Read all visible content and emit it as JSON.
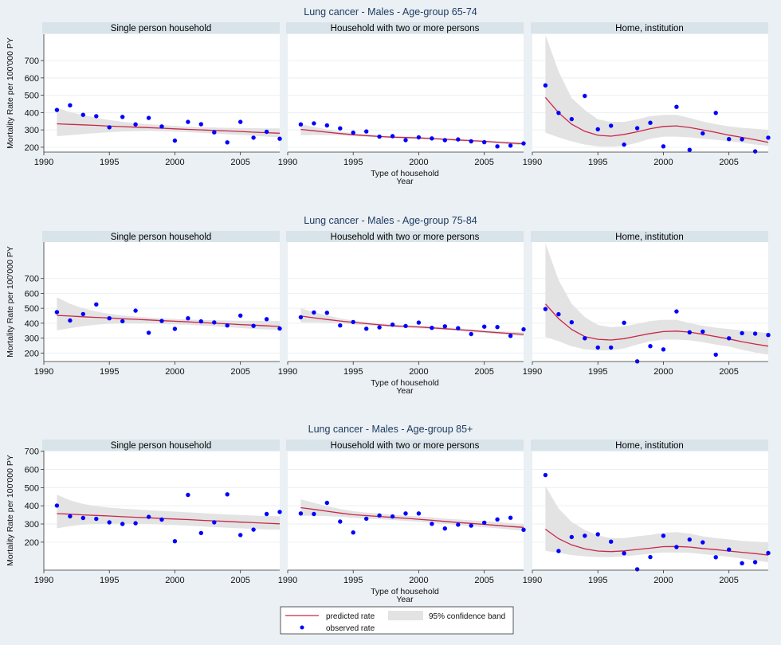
{
  "chart_data": {
    "type": "line",
    "layout": "3 rows x 3 facets",
    "shared": {
      "xlabel_lines": [
        "Type of household",
        "Year"
      ],
      "ylabel": "Mortality Rate per 100'000 PY",
      "x_ticks": [
        1990,
        1995,
        2000,
        2005
      ],
      "x_range": [
        1990,
        2008
      ],
      "y_ticks": [
        200,
        300,
        400,
        500,
        600,
        700
      ],
      "grid": true,
      "years": [
        1991,
        1992,
        1993,
        1994,
        1995,
        1996,
        1997,
        1998,
        1999,
        2000,
        2001,
        2002,
        2003,
        2004,
        2005,
        2006,
        2007,
        2008
      ]
    },
    "legend": {
      "placement": "bottom-center",
      "entries": [
        {
          "key": "predicted",
          "label": "predicted rate",
          "symbol": "line",
          "color": "#c8274a"
        },
        {
          "key": "band",
          "label": "95% confidence band",
          "symbol": "area",
          "color": "#e3e3e3"
        },
        {
          "key": "observed",
          "label": "observed rate",
          "symbol": "dot",
          "color": "#0000ff"
        }
      ]
    },
    "rows": [
      {
        "title": "Lung cancer - Males - Age-group 65-74",
        "y_range": [
          172,
          852
        ],
        "panels": [
          {
            "label": "Single person household",
            "observed": [
              415,
              442,
              387,
              379,
              315,
              375,
              332,
              369,
              320,
              238,
              346,
              333,
              286,
              228,
              346,
              255,
              289,
              249
            ],
            "predicted": [
              335,
              332,
              329,
              326,
              322,
              319,
              316,
              313,
              310,
              306,
              303,
              300,
              297,
              294,
              291,
              287,
              284,
              281
            ],
            "band_upper": [
              427,
              403,
              385,
              370,
              357,
              347,
              339,
              333,
              328,
              323,
              319,
              316,
              314,
              312,
              311,
              310,
              309,
              309
            ],
            "band_lower": [
              264,
              270,
              276,
              282,
              287,
              291,
              293,
              294,
              292,
              290,
              287,
              283,
              279,
              275,
              271,
              266,
              261,
              257
            ]
          },
          {
            "label": "Household with two or more persons",
            "observed": [
              332,
              338,
              326,
              309,
              284,
              291,
              261,
              264,
              241,
              257,
              251,
              241,
              245,
              234,
              229,
              205,
              209,
              222
            ],
            "predicted": [
              303,
              295,
              287,
              279,
              272,
              267,
              262,
              258,
              256,
              254,
              250,
              246,
              242,
              238,
              234,
              229,
              224,
              220
            ],
            "band_upper": [
              333,
              317,
              303,
              290,
              281,
              274,
              268,
              264,
              262,
              260,
              256,
              252,
              248,
              244,
              240,
              236,
              232,
              229
            ],
            "band_lower": [
              269,
              271,
              270,
              268,
              264,
              260,
              256,
              253,
              250,
              248,
              244,
              240,
              236,
              232,
              228,
              223,
              216,
              211
            ]
          },
          {
            "label": "Home, institution",
            "observed": [
              557,
              398,
              362,
              496,
              304,
              324,
              215,
              310,
              341,
              205,
              433,
              185,
              280,
              398,
              247,
              246,
              176,
              255
            ],
            "predicted": [
              487,
              399,
              333,
              292,
              269,
              264,
              274,
              289,
              307,
              320,
              323,
              314,
              300,
              286,
              270,
              257,
              243,
              228
            ],
            "band_upper": [
              849,
              637,
              484,
              415,
              361,
              346,
              346,
              361,
              379,
              387,
              387,
              369,
              349,
              333,
              320,
              312,
              306,
              300
            ],
            "band_lower": [
              284,
              257,
              234,
              215,
              205,
              203,
              208,
              226,
              249,
              261,
              261,
              257,
              249,
              243,
              235,
              226,
              215,
              208
            ]
          }
        ]
      },
      {
        "title": "Lung cancer - Males - Age-group 75-84",
        "y_range": [
          143,
          944
        ],
        "panels": [
          {
            "label": "Single person household",
            "observed": [
              474,
              418,
              461,
              526,
              433,
              413,
              484,
              336,
              415,
              362,
              433,
              412,
              405,
              385,
              451,
              382,
              427,
              364
            ],
            "predicted": [
              452,
              448,
              443,
              439,
              435,
              430,
              426,
              422,
              417,
              413,
              409,
              404,
              400,
              396,
              391,
              387,
              382,
              378
            ],
            "band_upper": [
              574,
              530,
              500,
              478,
              463,
              452,
              444,
              438,
              433,
              428,
              425,
              422,
              420,
              418,
              417,
              416,
              415,
              415
            ],
            "band_lower": [
              352,
              367,
              380,
              390,
              396,
              398,
              398,
              397,
              395,
              392,
              389,
              384,
              379,
              374,
              368,
              362,
              358,
              355
            ]
          },
          {
            "label": "Household with two or more persons",
            "observed": [
              440,
              472,
              470,
              385,
              408,
              363,
              372,
              390,
              381,
              404,
              369,
              379,
              366,
              327,
              377,
              374,
              315,
              359
            ],
            "predicted": [
              448,
              436,
              425,
              415,
              405,
              397,
              389,
              382,
              378,
              375,
              369,
              363,
              357,
              350,
              343,
              337,
              331,
              325
            ],
            "band_upper": [
              500,
              474,
              452,
              432,
              418,
              408,
              399,
              392,
              387,
              384,
              378,
              372,
              366,
              360,
              354,
              348,
              343,
              338
            ],
            "band_lower": [
              405,
              405,
              402,
              398,
              392,
              386,
              380,
              374,
              370,
              366,
              360,
              354,
              348,
              341,
              334,
              327,
              320,
              313
            ]
          },
          {
            "label": "Home, institution",
            "observed": [
              495,
              460,
              406,
              299,
              237,
              237,
              403,
              144,
              246,
              224,
              479,
              339,
              344,
              189,
              299,
              333,
              330,
              321
            ],
            "predicted": [
              529,
              431,
              358,
              310,
              292,
              287,
              296,
              314,
              331,
              344,
              347,
              340,
              326,
              310,
              294,
              276,
              260,
              246
            ],
            "band_upper": [
              936,
              690,
              530,
              441,
              388,
              373,
              379,
              396,
              414,
              423,
              423,
              401,
              383,
              370,
              361,
              352,
              343,
              334
            ],
            "band_lower": [
              308,
              279,
              245,
              225,
              217,
              217,
              231,
              257,
              279,
              290,
              290,
              285,
              273,
              257,
              244,
              222,
              204,
              189
            ]
          }
        ]
      },
      {
        "title": "Lung cancer - Males - Age-group 85+",
        "y_range": [
          46,
          703
        ],
        "panels": [
          {
            "label": "Single person household",
            "observed": [
              401,
              342,
              333,
              328,
              309,
              300,
              304,
              339,
              324,
              205,
              460,
              250,
              309,
              463,
              239,
              269,
              355,
              366
            ],
            "predicted": [
              357,
              354,
              350,
              347,
              344,
              340,
              337,
              334,
              330,
              327,
              324,
              320,
              317,
              314,
              310,
              307,
              304,
              301
            ],
            "band_upper": [
              461,
              430,
              410,
              398,
              390,
              384,
              380,
              376,
              372,
              368,
              364,
              360,
              356,
              352,
              349,
              346,
              344,
              342
            ],
            "band_lower": [
              276,
              288,
              296,
              300,
              302,
              302,
              301,
              300,
              297,
              294,
              291,
              287,
              283,
              279,
              276,
              273,
              270,
              268
            ]
          },
          {
            "label": "Household with two or more persons",
            "observed": [
              358,
              355,
              416,
              313,
              253,
              329,
              347,
              341,
              358,
              358,
              301,
              275,
              296,
              291,
              307,
              325,
              334,
              268
            ],
            "predicted": [
              390,
              380,
              370,
              360,
              351,
              346,
              341,
              336,
              331,
              326,
              320,
              314,
              308,
              303,
              298,
              292,
              286,
              281
            ],
            "band_upper": [
              436,
              416,
              398,
              382,
              370,
              363,
              357,
              351,
              346,
              341,
              336,
              330,
              325,
              320,
              316,
              311,
              305,
              300
            ],
            "band_lower": [
              345,
              345,
              343,
              340,
              334,
              330,
              326,
              322,
              317,
              312,
              306,
              300,
              294,
              288,
              282,
              276,
              269,
              263
            ]
          },
          {
            "label": "Home, institution",
            "observed": [
              569,
              151,
              228,
              235,
              243,
              203,
              139,
              51,
              118,
              235,
              173,
              214,
              199,
              117,
              159,
              84,
              90,
              140
            ],
            "predicted": [
              271,
              219,
              185,
              163,
              151,
              148,
              152,
              160,
              167,
              175,
              176,
              173,
              165,
              159,
              151,
              144,
              137,
              129
            ],
            "band_upper": [
              509,
              385,
              311,
              267,
              237,
              222,
              222,
              232,
              240,
              252,
              255,
              247,
              232,
              222,
              215,
              207,
              203,
              198
            ],
            "band_lower": [
              152,
              141,
              129,
              122,
              118,
              118,
              122,
              129,
              137,
              143,
              143,
              141,
              134,
              127,
              119,
              110,
              100,
              90
            ]
          }
        ]
      }
    ]
  }
}
